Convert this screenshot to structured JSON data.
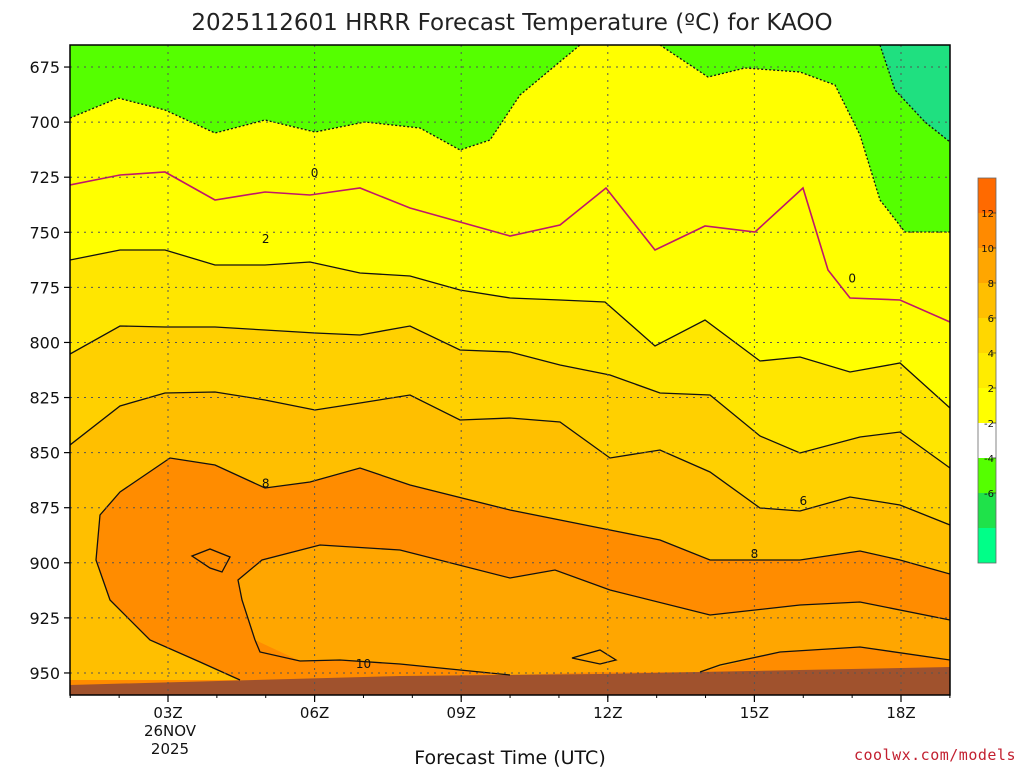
{
  "chart_data": {
    "type": "contour",
    "title": "2025112601 HRRR Forecast Temperature (ºC) for KAOO",
    "xlabel": "Forecast Time (UTC)",
    "ylabel": "",
    "x_ticks": [
      "03Z",
      "06Z",
      "09Z",
      "12Z",
      "15Z",
      "18Z"
    ],
    "x_date_label": [
      "26NOV",
      "2025"
    ],
    "y_ticks": [
      "675",
      "700",
      "725",
      "750",
      "775",
      "800",
      "825",
      "850",
      "875",
      "900",
      "925",
      "950"
    ],
    "y_range": [
      960,
      665
    ],
    "grid": true,
    "contour_labels": [
      {
        "value": "0",
        "x": 6,
        "y": 723
      },
      {
        "value": "0",
        "x": 17,
        "y": 771
      },
      {
        "value": "2",
        "x": 5,
        "y": 753
      },
      {
        "value": "8",
        "x": 5,
        "y": 864
      },
      {
        "value": "6",
        "x": 16,
        "y": 872
      },
      {
        "value": "8",
        "x": 15,
        "y": 896
      },
      {
        "value": "10",
        "x": 7,
        "y": 946
      }
    ],
    "colorbar": {
      "ticks": [
        "12",
        "10",
        "8",
        "6",
        "4",
        "2",
        "-2",
        "-4",
        "-6"
      ],
      "colors": [
        "#ff6a00",
        "#ff8a00",
        "#ffa600",
        "#ffbf00",
        "#ffd700",
        "#ffec00",
        "#ffff00",
        "#ffffff",
        "#55ff00",
        "#1fe24a",
        "#00ff88"
      ]
    },
    "fills": {
      "warm10": "#ff8c00",
      "warm8": "#ffa600",
      "warm6": "#ffbf00",
      "warm4": "#ffdd00",
      "warm2": "#ffff00",
      "zero": "#ffffff",
      "cold2": "#55ff00",
      "cold4": "#1fe080",
      "ground": "#a0522d",
      "freezing_line": "#c0176a"
    }
  },
  "credit": "coolwx.com/models"
}
